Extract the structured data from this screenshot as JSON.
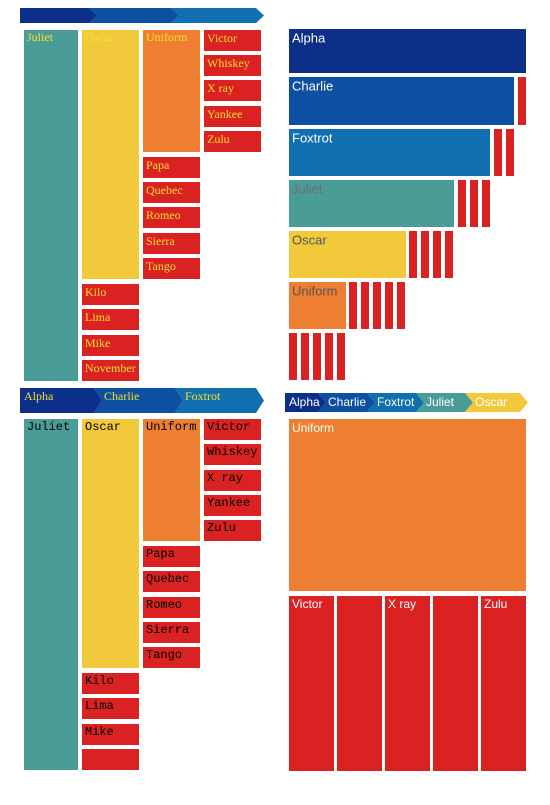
{
  "colors": {
    "Alpha": "#0c2f8a",
    "Charlie": "#0d4fa0",
    "Foxtrot": "#116fb0",
    "Juliet": "#4a9c97",
    "Oscar": "#f1c93b",
    "Uniform": "#ee7e32",
    "red": "#da2222",
    "white": "#ffffff"
  },
  "chart_data": [
    {
      "type": "treemap",
      "panel": "top-left",
      "breadcrumb": [
        "",
        "",
        ""
      ],
      "labels": {
        "Juliet": "Juliet",
        "Oscar": "Oscar",
        "Uniform": "Uniform",
        "Victor": "Victor",
        "Whiskey": "Whiskey",
        "X ray": "X ray",
        "Yankee": "Yankee",
        "Zulu": "Zulu",
        "Papa": "Papa",
        "Quebec": "Quebec",
        "Romeo": "Romeo",
        "Sierra": "Sierra",
        "Tango": "Tango",
        "Kilo": "Kilo",
        "Lima": "Lima",
        "Mike": "Mike",
        "November": "November"
      }
    },
    {
      "type": "icicle",
      "panel": "top-right",
      "labels": {
        "Alpha": "Alpha",
        "Charlie": "Charlie",
        "Foxtrot": "Foxtrot",
        "Juliet": "Juliet",
        "Oscar": "Oscar",
        "Uniform": "Uniform"
      }
    },
    {
      "type": "treemap",
      "panel": "bottom-left",
      "breadcrumb": [
        "Alpha",
        "Charlie",
        "Foxtrot"
      ],
      "labels": {
        "Juliet": "Juliet",
        "Oscar": "Oscar",
        "Uniform": "Uniform",
        "Victor": "Victor",
        "Whiskey": "Whiskey",
        "X ray": "X ray",
        "Yankee": "Yankee",
        "Zulu": "Zulu",
        "Papa": "Papa",
        "Quebec": "Quebec",
        "Romeo": "Romeo",
        "Sierra": "Sierra",
        "Tango": "Tango",
        "Kilo": "Kilo",
        "Lima": "Lima",
        "Mike": "Mike"
      }
    },
    {
      "type": "treemap",
      "panel": "bottom-right",
      "breadcrumb": [
        "Alpha",
        "Charlie",
        "Foxtrot",
        "Juliet",
        "Oscar"
      ],
      "labels": {
        "Uniform": "Uniform",
        "Victor": "Victor",
        "X ray": "X ray",
        "Zulu": "Zulu"
      }
    }
  ]
}
